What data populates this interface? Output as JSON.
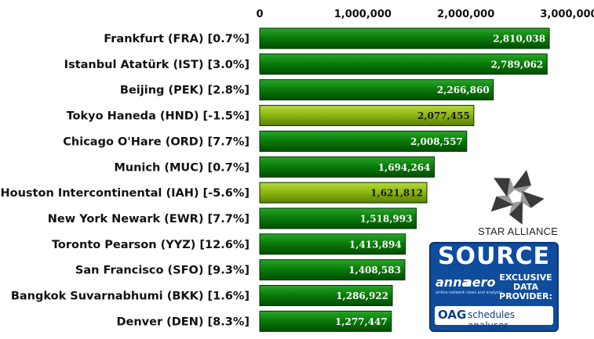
{
  "chart_data": {
    "type": "bar",
    "orientation": "horizontal",
    "categories": [
      "Frankfurt (FRA) [0.7%]",
      "Istanbul Atatürk (IST) [3.0%]",
      "Beijing (PEK) [2.8%]",
      "Tokyo Haneda (HND) [-1.5%]",
      "Chicago O'Hare (ORD) [7.7%]",
      "Munich (MUC) [0.7%]",
      "Houston Intercontinental (IAH) [-5.6%]",
      "New York Newark (EWR) [7.7%]",
      "Toronto Pearson (YYZ) [12.6%]",
      "San Francisco (SFO) [9.3%]",
      "Bangkok Suvarnabhumi (BKK) [1.6%]",
      "Denver (DEN) [8.3%]"
    ],
    "values": [
      2810038,
      2789062,
      2266860,
      2077455,
      2008557,
      1694264,
      1621812,
      1518993,
      1413894,
      1408583,
      1286922,
      1277447
    ],
    "data_labels": [
      "2,810,038",
      "2,789,062",
      "2,266,860",
      "2,077,455",
      "2,008,557",
      "1,694,264",
      "1,621,812",
      "1,518,993",
      "1,413,894",
      "1,408,583",
      "1,286,922",
      "1,277,447"
    ],
    "highlight": [
      false,
      false,
      false,
      true,
      false,
      false,
      true,
      false,
      false,
      false,
      false,
      false
    ],
    "xlim": [
      0,
      3000000
    ],
    "ticks": [
      0,
      1000000,
      2000000,
      3000000
    ],
    "tick_labels": [
      "0",
      "1,000,000",
      "2,000,000",
      "3,000,000"
    ],
    "x_axis_position": "top",
    "grid": false,
    "title": "",
    "xlabel": "",
    "ylabel": "",
    "colors": {
      "bar": "#0b7d0b",
      "bar_light": "#2aa52a",
      "bar_dark": "#004d00",
      "highlight_bar": "#8fba14",
      "highlight_light": "#b6d83d",
      "highlight_dark": "#5c7f00",
      "bar_edge": "#003300"
    }
  },
  "logos": {
    "star_alliance": "STAR ALLIANCE",
    "source_title": "SOURCE",
    "anna": "anna",
    "aero": "aero",
    "anna_tagline": "airline network news and analysis",
    "exclusive_line1": "EXCLUSIVE",
    "exclusive_line2": "DATA PROVIDER:",
    "oag": "OAG",
    "oag_sub": "schedules analyser"
  }
}
